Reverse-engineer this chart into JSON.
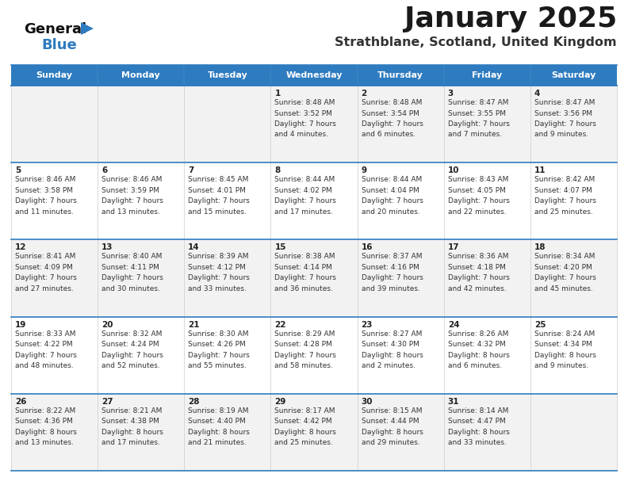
{
  "title": "January 2025",
  "subtitle": "Strathblane, Scotland, United Kingdom",
  "header_bg": "#2E7BBF",
  "header_text": "#FFFFFF",
  "day_names": [
    "Sunday",
    "Monday",
    "Tuesday",
    "Wednesday",
    "Thursday",
    "Friday",
    "Saturday"
  ],
  "row_bg_odd": "#F2F2F2",
  "row_bg_even": "#FFFFFF",
  "border_color_blue": "#2E7BBF",
  "border_color_light": "#CCCCCC",
  "title_color": "#1a1a1a",
  "subtitle_color": "#333333",
  "date_num_color": "#222222",
  "info_color": "#333333",
  "logo_text_color": "#111111",
  "logo_blue_color": "#2E7BBF",
  "calendar_data": [
    [
      {
        "day": "",
        "info": ""
      },
      {
        "day": "",
        "info": ""
      },
      {
        "day": "",
        "info": ""
      },
      {
        "day": "1",
        "info": "Sunrise: 8:48 AM\nSunset: 3:52 PM\nDaylight: 7 hours\nand 4 minutes."
      },
      {
        "day": "2",
        "info": "Sunrise: 8:48 AM\nSunset: 3:54 PM\nDaylight: 7 hours\nand 6 minutes."
      },
      {
        "day": "3",
        "info": "Sunrise: 8:47 AM\nSunset: 3:55 PM\nDaylight: 7 hours\nand 7 minutes."
      },
      {
        "day": "4",
        "info": "Sunrise: 8:47 AM\nSunset: 3:56 PM\nDaylight: 7 hours\nand 9 minutes."
      }
    ],
    [
      {
        "day": "5",
        "info": "Sunrise: 8:46 AM\nSunset: 3:58 PM\nDaylight: 7 hours\nand 11 minutes."
      },
      {
        "day": "6",
        "info": "Sunrise: 8:46 AM\nSunset: 3:59 PM\nDaylight: 7 hours\nand 13 minutes."
      },
      {
        "day": "7",
        "info": "Sunrise: 8:45 AM\nSunset: 4:01 PM\nDaylight: 7 hours\nand 15 minutes."
      },
      {
        "day": "8",
        "info": "Sunrise: 8:44 AM\nSunset: 4:02 PM\nDaylight: 7 hours\nand 17 minutes."
      },
      {
        "day": "9",
        "info": "Sunrise: 8:44 AM\nSunset: 4:04 PM\nDaylight: 7 hours\nand 20 minutes."
      },
      {
        "day": "10",
        "info": "Sunrise: 8:43 AM\nSunset: 4:05 PM\nDaylight: 7 hours\nand 22 minutes."
      },
      {
        "day": "11",
        "info": "Sunrise: 8:42 AM\nSunset: 4:07 PM\nDaylight: 7 hours\nand 25 minutes."
      }
    ],
    [
      {
        "day": "12",
        "info": "Sunrise: 8:41 AM\nSunset: 4:09 PM\nDaylight: 7 hours\nand 27 minutes."
      },
      {
        "day": "13",
        "info": "Sunrise: 8:40 AM\nSunset: 4:11 PM\nDaylight: 7 hours\nand 30 minutes."
      },
      {
        "day": "14",
        "info": "Sunrise: 8:39 AM\nSunset: 4:12 PM\nDaylight: 7 hours\nand 33 minutes."
      },
      {
        "day": "15",
        "info": "Sunrise: 8:38 AM\nSunset: 4:14 PM\nDaylight: 7 hours\nand 36 minutes."
      },
      {
        "day": "16",
        "info": "Sunrise: 8:37 AM\nSunset: 4:16 PM\nDaylight: 7 hours\nand 39 minutes."
      },
      {
        "day": "17",
        "info": "Sunrise: 8:36 AM\nSunset: 4:18 PM\nDaylight: 7 hours\nand 42 minutes."
      },
      {
        "day": "18",
        "info": "Sunrise: 8:34 AM\nSunset: 4:20 PM\nDaylight: 7 hours\nand 45 minutes."
      }
    ],
    [
      {
        "day": "19",
        "info": "Sunrise: 8:33 AM\nSunset: 4:22 PM\nDaylight: 7 hours\nand 48 minutes."
      },
      {
        "day": "20",
        "info": "Sunrise: 8:32 AM\nSunset: 4:24 PM\nDaylight: 7 hours\nand 52 minutes."
      },
      {
        "day": "21",
        "info": "Sunrise: 8:30 AM\nSunset: 4:26 PM\nDaylight: 7 hours\nand 55 minutes."
      },
      {
        "day": "22",
        "info": "Sunrise: 8:29 AM\nSunset: 4:28 PM\nDaylight: 7 hours\nand 58 minutes."
      },
      {
        "day": "23",
        "info": "Sunrise: 8:27 AM\nSunset: 4:30 PM\nDaylight: 8 hours\nand 2 minutes."
      },
      {
        "day": "24",
        "info": "Sunrise: 8:26 AM\nSunset: 4:32 PM\nDaylight: 8 hours\nand 6 minutes."
      },
      {
        "day": "25",
        "info": "Sunrise: 8:24 AM\nSunset: 4:34 PM\nDaylight: 8 hours\nand 9 minutes."
      }
    ],
    [
      {
        "day": "26",
        "info": "Sunrise: 8:22 AM\nSunset: 4:36 PM\nDaylight: 8 hours\nand 13 minutes."
      },
      {
        "day": "27",
        "info": "Sunrise: 8:21 AM\nSunset: 4:38 PM\nDaylight: 8 hours\nand 17 minutes."
      },
      {
        "day": "28",
        "info": "Sunrise: 8:19 AM\nSunset: 4:40 PM\nDaylight: 8 hours\nand 21 minutes."
      },
      {
        "day": "29",
        "info": "Sunrise: 8:17 AM\nSunset: 4:42 PM\nDaylight: 8 hours\nand 25 minutes."
      },
      {
        "day": "30",
        "info": "Sunrise: 8:15 AM\nSunset: 4:44 PM\nDaylight: 8 hours\nand 29 minutes."
      },
      {
        "day": "31",
        "info": "Sunrise: 8:14 AM\nSunset: 4:47 PM\nDaylight: 8 hours\nand 33 minutes."
      },
      {
        "day": "",
        "info": ""
      }
    ]
  ]
}
